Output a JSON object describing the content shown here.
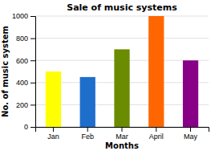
{
  "chart_data": {
    "type": "bar",
    "title": "Sale of music systems",
    "xlabel": "Months",
    "ylabel": "No. of music system",
    "categories": [
      "Jan",
      "Feb",
      "Mar",
      "April",
      "May"
    ],
    "values": [
      500,
      450,
      700,
      1000,
      600
    ],
    "colors": [
      "#ffff00",
      "#1e6fcc",
      "#6b8c00",
      "#ff6600",
      "#880088"
    ],
    "ylim": [
      0,
      1000
    ],
    "yticks": [
      0,
      200,
      400,
      600,
      800,
      1000
    ],
    "grid": true
  }
}
